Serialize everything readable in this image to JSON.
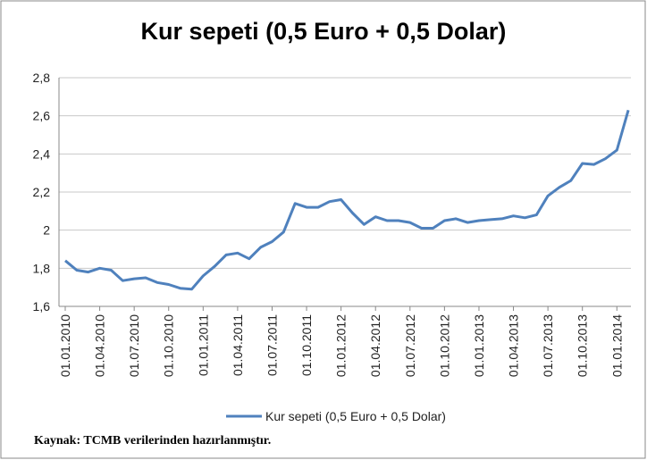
{
  "chart_data": {
    "type": "line",
    "title": "Kur sepeti (0,5 Euro + 0,5 Dolar)",
    "categories": [
      "01.01.2010",
      null,
      null,
      "01.04.2010",
      null,
      null,
      "01.07.2010",
      null,
      null,
      "01.10.2010",
      null,
      null,
      "01.01.2011",
      null,
      null,
      "01.04.2011",
      null,
      null,
      "01.07.2011",
      null,
      null,
      "01.10.2011",
      null,
      null,
      "01.01.2012",
      null,
      null,
      "01.04.2012",
      null,
      null,
      "01.07.2012",
      null,
      null,
      "01.10.2012",
      null,
      null,
      "01.01.2013",
      null,
      null,
      "01.04.2013",
      null,
      null,
      "01.07.2013",
      null,
      null,
      "01.10.2013",
      null,
      null,
      "01.01.2014",
      null
    ],
    "series": [
      {
        "name": "Kur sepeti (0,5 Euro + 0,5 Dolar)",
        "color": "#4f81bd",
        "values": [
          1.84,
          1.79,
          1.78,
          1.8,
          1.79,
          1.735,
          1.745,
          1.75,
          1.725,
          1.715,
          1.695,
          1.69,
          1.76,
          1.81,
          1.87,
          1.88,
          1.85,
          1.91,
          1.94,
          1.99,
          2.14,
          2.12,
          2.12,
          2.15,
          2.16,
          2.09,
          2.03,
          2.07,
          2.05,
          2.05,
          2.04,
          2.01,
          2.01,
          2.05,
          2.06,
          2.04,
          2.05,
          2.055,
          2.06,
          2.075,
          2.065,
          2.08,
          2.18,
          2.225,
          2.26,
          2.35,
          2.345,
          2.375,
          2.42,
          2.63
        ]
      }
    ],
    "ylim": [
      1.6,
      2.8
    ],
    "yticks": [
      {
        "value": 1.6,
        "label": "1,6"
      },
      {
        "value": 1.8,
        "label": "1,8"
      },
      2,
      {
        "value": 2.2,
        "label": "2,2"
      },
      {
        "value": 2.4,
        "label": "2,4"
      },
      {
        "value": 2.6,
        "label": "2,6"
      },
      {
        "value": 2.8,
        "label": "2,8"
      }
    ],
    "grid": true,
    "legend": "bottom",
    "source": "Kaynak: TCMB verilerinden  hazırlanmıştır."
  }
}
